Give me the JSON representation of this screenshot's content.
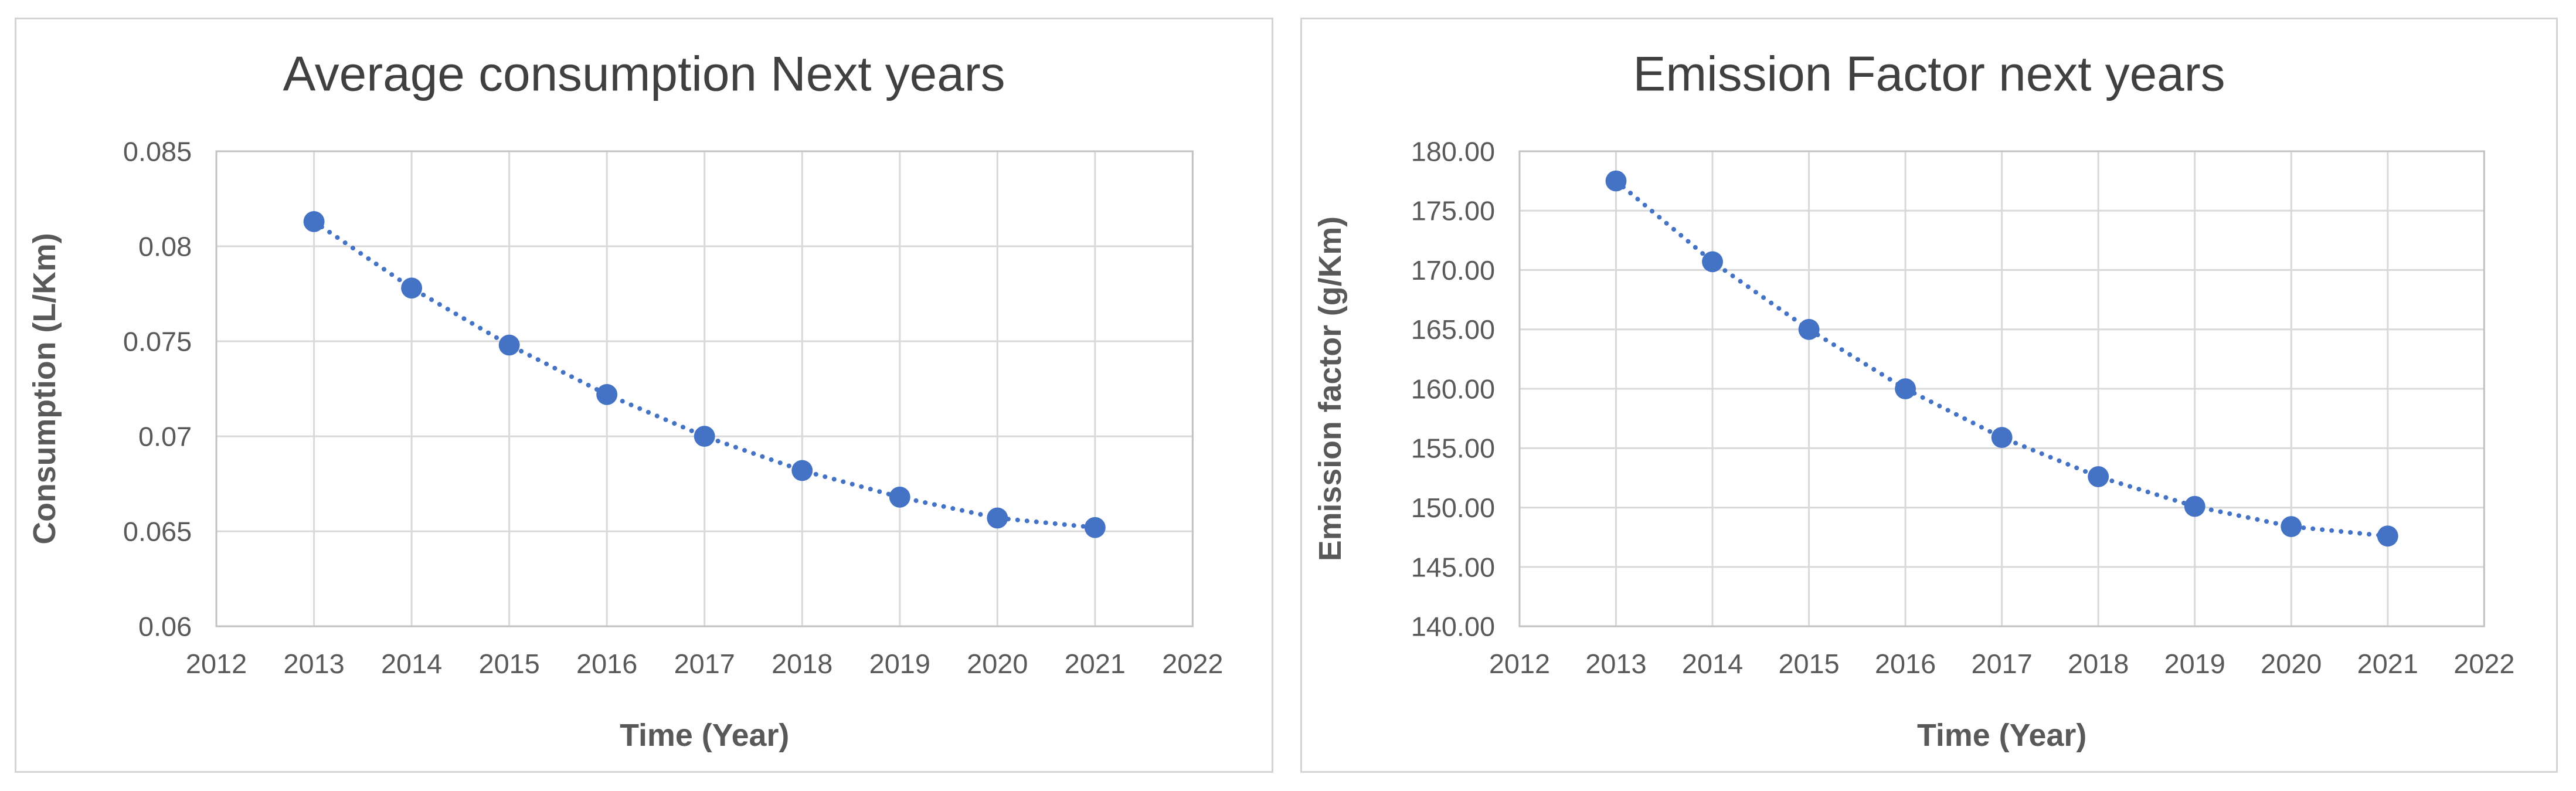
{
  "page": {
    "background_color": "#ffffff",
    "accent_color": "#4472C4"
  },
  "chart_data": [
    {
      "type": "scatter",
      "title": "Average consumption Next years",
      "xlabel": "Time (Year)",
      "ylabel": "Consumption (L/Km)",
      "x": [
        2013,
        2014,
        2015,
        2016,
        2017,
        2018,
        2019,
        2020,
        2021
      ],
      "values": [
        0.0813,
        0.0778,
        0.0748,
        0.0722,
        0.07,
        0.0682,
        0.0668,
        0.0657,
        0.0652
      ],
      "xlim": [
        2012,
        2022
      ],
      "ylim": [
        0.06,
        0.085
      ],
      "x_tick_labels": [
        "2012",
        "2013",
        "2014",
        "2015",
        "2016",
        "2017",
        "2018",
        "2019",
        "2020",
        "2021",
        "2022"
      ],
      "y_tick_labels": [
        "0.06",
        "0.065",
        "0.07",
        "0.075",
        "0.08",
        "0.085"
      ],
      "grid": true,
      "legend": "none",
      "line_style": "dotted",
      "marker": "circle",
      "marker_color": "#4472C4",
      "line_color": "#4472C4"
    },
    {
      "type": "scatter",
      "title": "Emission Factor next years",
      "xlabel": "Time (Year)",
      "ylabel": "Emission factor (g/Km)",
      "x": [
        2013,
        2014,
        2015,
        2016,
        2017,
        2018,
        2019,
        2020,
        2021
      ],
      "values": [
        177.5,
        170.7,
        165.0,
        160.0,
        155.9,
        152.6,
        150.1,
        148.4,
        147.6
      ],
      "xlim": [
        2012,
        2022
      ],
      "ylim": [
        140,
        180
      ],
      "x_tick_labels": [
        "2012",
        "2013",
        "2014",
        "2015",
        "2016",
        "2017",
        "2018",
        "2019",
        "2020",
        "2021",
        "2022"
      ],
      "y_tick_labels": [
        "140.00",
        "145.00",
        "150.00",
        "155.00",
        "160.00",
        "165.00",
        "170.00",
        "175.00",
        "180.00"
      ],
      "grid": true,
      "legend": "none",
      "line_style": "dotted",
      "marker": "circle",
      "marker_color": "#4472C4",
      "line_color": "#4472C4"
    }
  ]
}
